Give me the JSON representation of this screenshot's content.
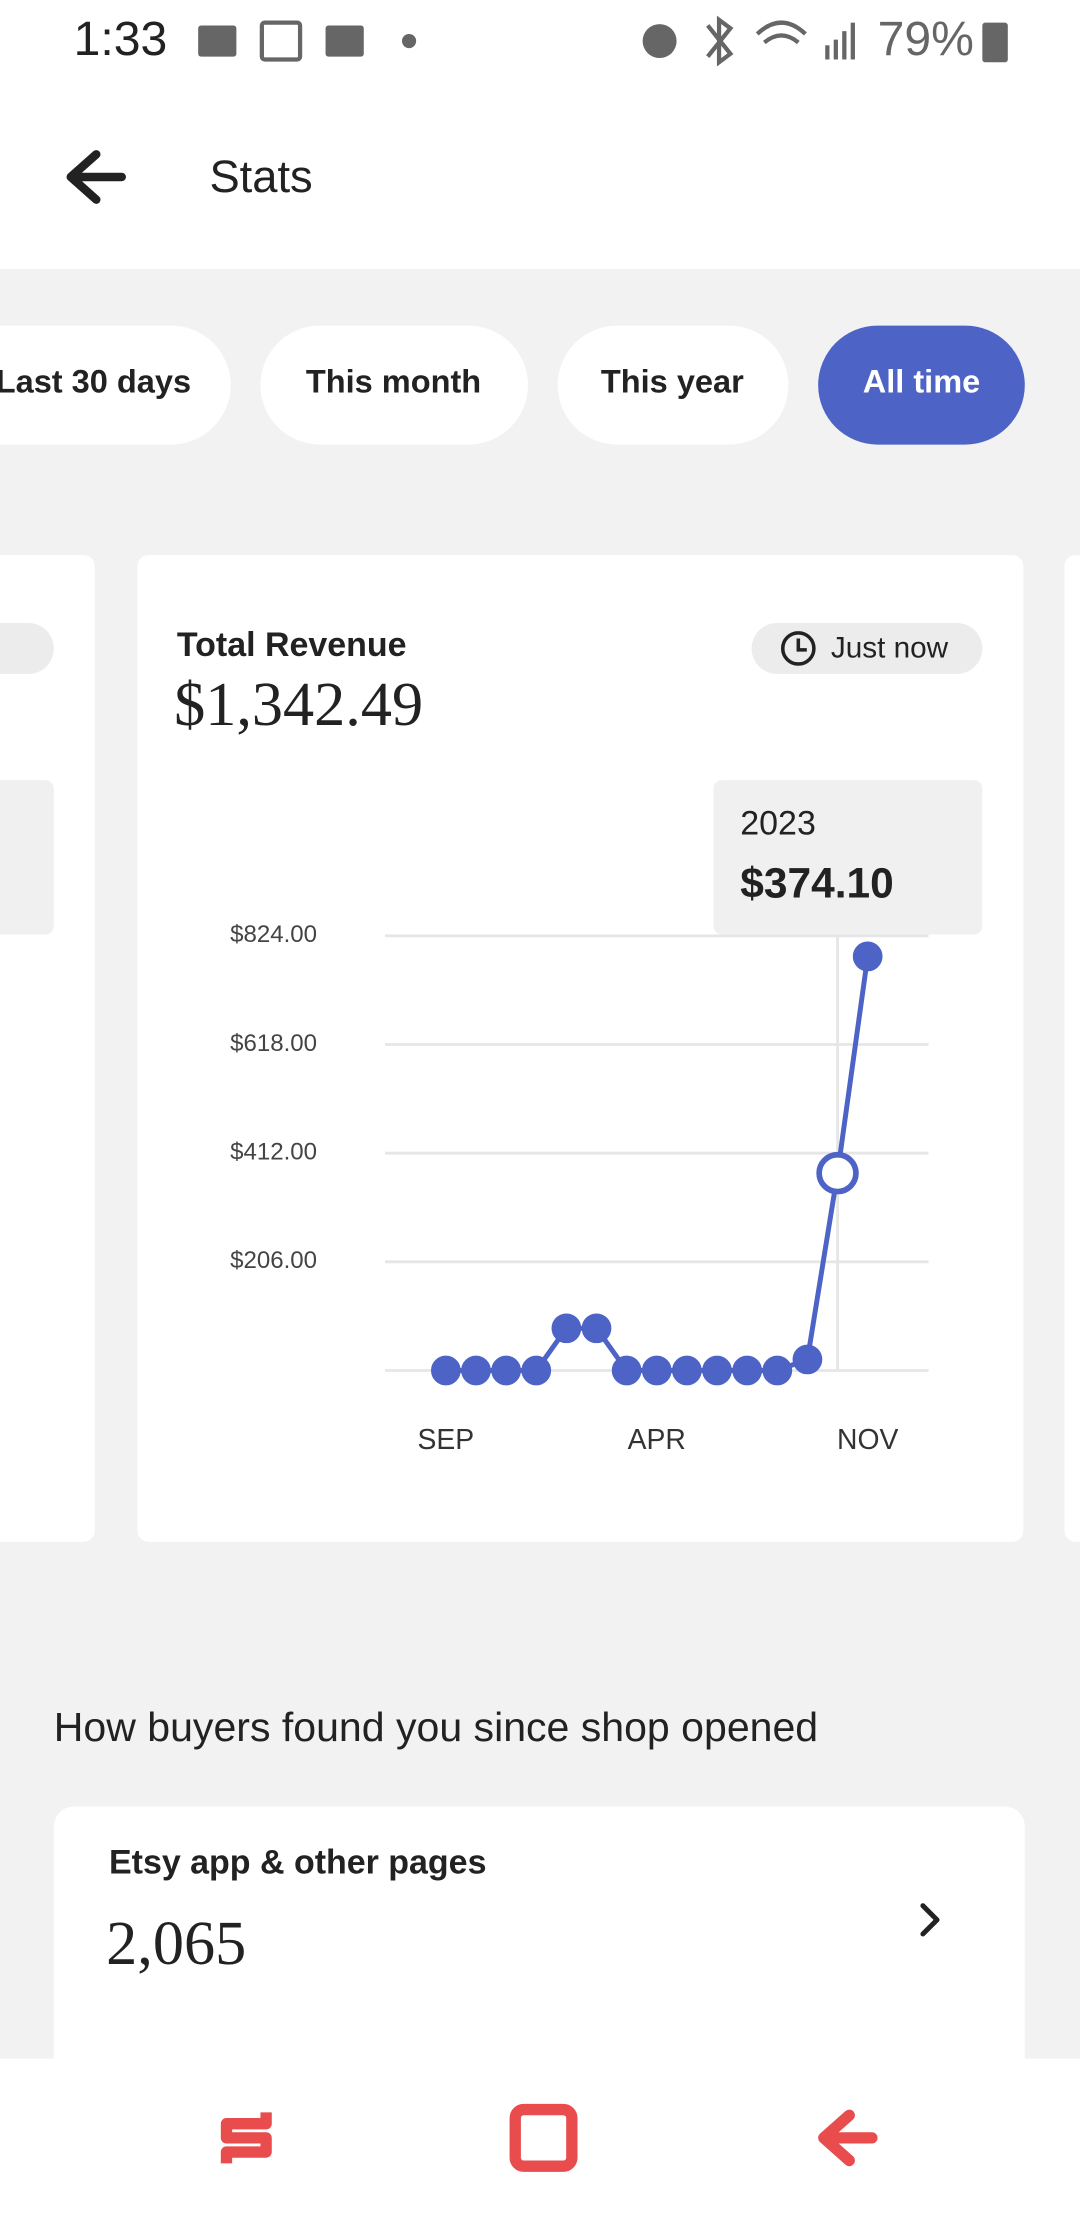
{
  "status_bar": {
    "time": "1:33",
    "battery": "79%"
  },
  "header": {
    "title": "Stats"
  },
  "filters": [
    "Last 30 days",
    "This month",
    "This year",
    "All time"
  ],
  "revenue_card": {
    "title": "Total Revenue",
    "value": "$1,342.49",
    "badge": "Just now",
    "tooltip": {
      "label": "2023",
      "value": "$374.10"
    },
    "chart": {
      "type": "line",
      "color": "#4d63c6",
      "categories": [
        "SEP",
        null,
        null,
        null,
        null,
        null,
        null,
        "APR",
        null,
        null,
        null,
        null,
        null,
        null,
        "NOV"
      ],
      "values": [
        0,
        0,
        0,
        0,
        80,
        80,
        0,
        0,
        0,
        0,
        0,
        0,
        21,
        374.1,
        785
      ],
      "ylim": [
        0,
        824
      ],
      "yticks": [
        {
          "value": 206,
          "label": "$206.00"
        },
        {
          "value": 412,
          "label": "$412.00"
        },
        {
          "value": 618,
          "label": "$618.00"
        },
        {
          "value": 824,
          "label": "$824.00"
        }
      ],
      "grid": true,
      "highlight_index": 13
    }
  },
  "section": {
    "title": "How buyers found you since shop opened"
  },
  "source_card": {
    "title": "Etsy app & other pages",
    "value": "2,065"
  }
}
